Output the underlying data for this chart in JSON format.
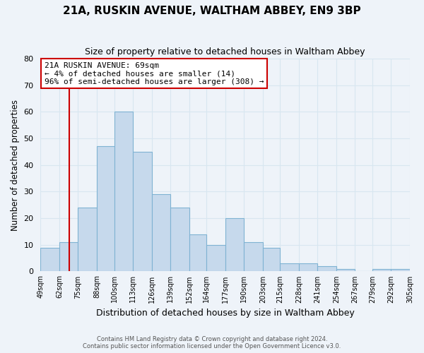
{
  "title": "21A, RUSKIN AVENUE, WALTHAM ABBEY, EN9 3BP",
  "subtitle": "Size of property relative to detached houses in Waltham Abbey",
  "xlabel": "Distribution of detached houses by size in Waltham Abbey",
  "ylabel": "Number of detached properties",
  "bin_labels": [
    "49sqm",
    "62sqm",
    "75sqm",
    "88sqm",
    "100sqm",
    "113sqm",
    "126sqm",
    "139sqm",
    "152sqm",
    "164sqm",
    "177sqm",
    "190sqm",
    "203sqm",
    "215sqm",
    "228sqm",
    "241sqm",
    "254sqm",
    "267sqm",
    "279sqm",
    "292sqm",
    "305sqm"
  ],
  "bin_edges": [
    49,
    62,
    75,
    88,
    100,
    113,
    126,
    139,
    152,
    164,
    177,
    190,
    203,
    215,
    228,
    241,
    254,
    267,
    279,
    292,
    305
  ],
  "bar_heights": [
    9,
    11,
    24,
    47,
    60,
    45,
    29,
    24,
    14,
    10,
    20,
    11,
    9,
    3,
    3,
    2,
    1,
    0,
    1,
    1
  ],
  "bar_color": "#c6d9ec",
  "bar_edge_color": "#7fb3d3",
  "grid_color": "#d8e6f0",
  "bg_color": "#eef3f9",
  "vline_x": 69,
  "vline_color": "#cc0000",
  "annotation_line1": "21A RUSKIN AVENUE: 69sqm",
  "annotation_line2": "← 4% of detached houses are smaller (14)",
  "annotation_line3": "96% of semi-detached houses are larger (308) →",
  "annotation_box_color": "#ffffff",
  "annotation_box_edge": "#cc0000",
  "ylim": [
    0,
    80
  ],
  "yticks": [
    0,
    10,
    20,
    30,
    40,
    50,
    60,
    70,
    80
  ],
  "footer_line1": "Contains HM Land Registry data © Crown copyright and database right 2024.",
  "footer_line2": "Contains public sector information licensed under the Open Government Licence v3.0."
}
